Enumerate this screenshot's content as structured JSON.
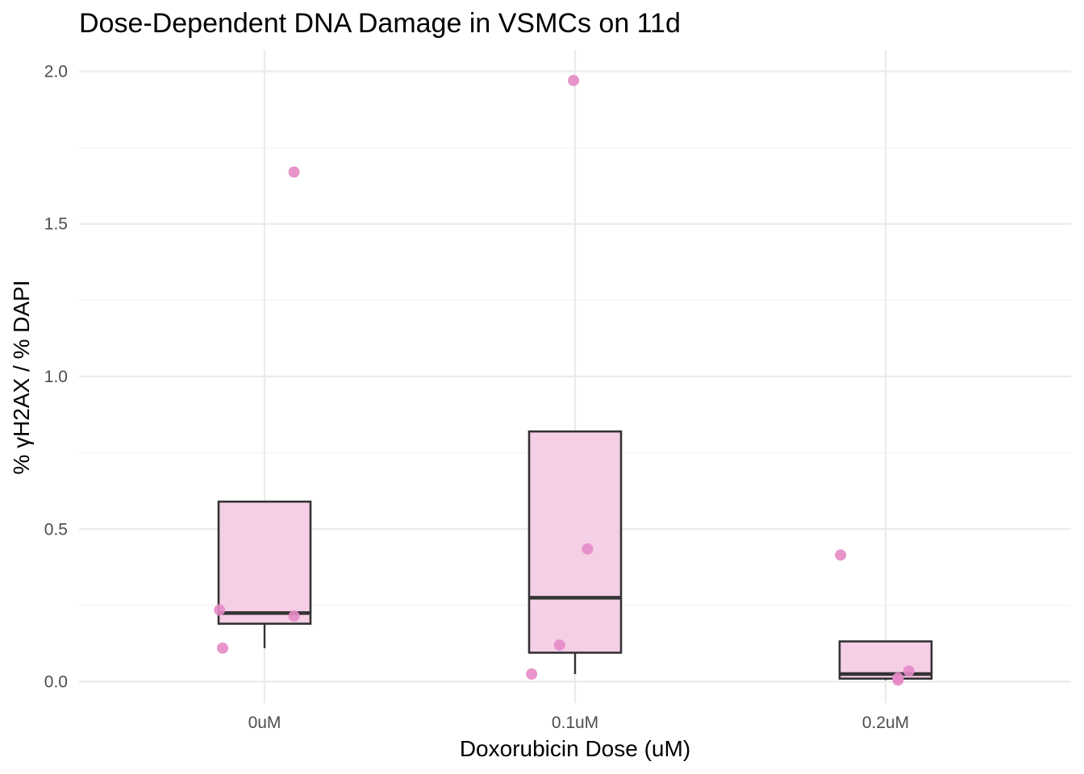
{
  "chart_data": {
    "type": "box",
    "title": "Dose-Dependent DNA Damage in VSMCs on 11d",
    "xlabel": "Doxorubicin Dose (uM)",
    "ylabel": "% γH2AX / % DAPI",
    "categories": [
      "0uM",
      "0.1uM",
      "0.2uM"
    ],
    "ylim": [
      -0.07,
      2.07
    ],
    "yticks": [
      0.0,
      0.5,
      1.0,
      1.5,
      2.0
    ],
    "ytick_labels": [
      "0.0",
      "0.5",
      "1.0",
      "1.5",
      "2.0"
    ],
    "grid": true,
    "box_fill": "#f5cfe6",
    "box_stroke": "#333333",
    "point_color": "#e58ac6",
    "boxes": [
      {
        "category": "0uM",
        "q1": 0.19,
        "median": 0.225,
        "q3": 0.59,
        "whisker_low": 0.11,
        "whisker_high": 0.59
      },
      {
        "category": "0.1uM",
        "q1": 0.095,
        "median": 0.275,
        "q3": 0.82,
        "whisker_low": 0.025,
        "whisker_high": 0.82
      },
      {
        "category": "0.2uM",
        "q1": 0.01,
        "median": 0.025,
        "q3": 0.132,
        "whisker_low": 0.005,
        "whisker_high": 0.132
      }
    ],
    "points": [
      {
        "category": "0uM",
        "jitter": -0.145,
        "y": 0.235
      },
      {
        "category": "0uM",
        "jitter": -0.135,
        "y": 0.11
      },
      {
        "category": "0uM",
        "jitter": 0.095,
        "y": 0.215
      },
      {
        "category": "0uM",
        "jitter": 0.095,
        "y": 1.67
      },
      {
        "category": "0.1uM",
        "jitter": -0.005,
        "y": 1.97
      },
      {
        "category": "0.1uM",
        "jitter": 0.04,
        "y": 0.435
      },
      {
        "category": "0.1uM",
        "jitter": -0.05,
        "y": 0.12
      },
      {
        "category": "0.1uM",
        "jitter": -0.14,
        "y": 0.025
      },
      {
        "category": "0.2uM",
        "jitter": -0.145,
        "y": 0.415
      },
      {
        "category": "0.2uM",
        "jitter": 0.075,
        "y": 0.035
      },
      {
        "category": "0.2uM",
        "jitter": 0.04,
        "y": 0.012
      },
      {
        "category": "0.2uM",
        "jitter": 0.04,
        "y": 0.005
      }
    ]
  }
}
